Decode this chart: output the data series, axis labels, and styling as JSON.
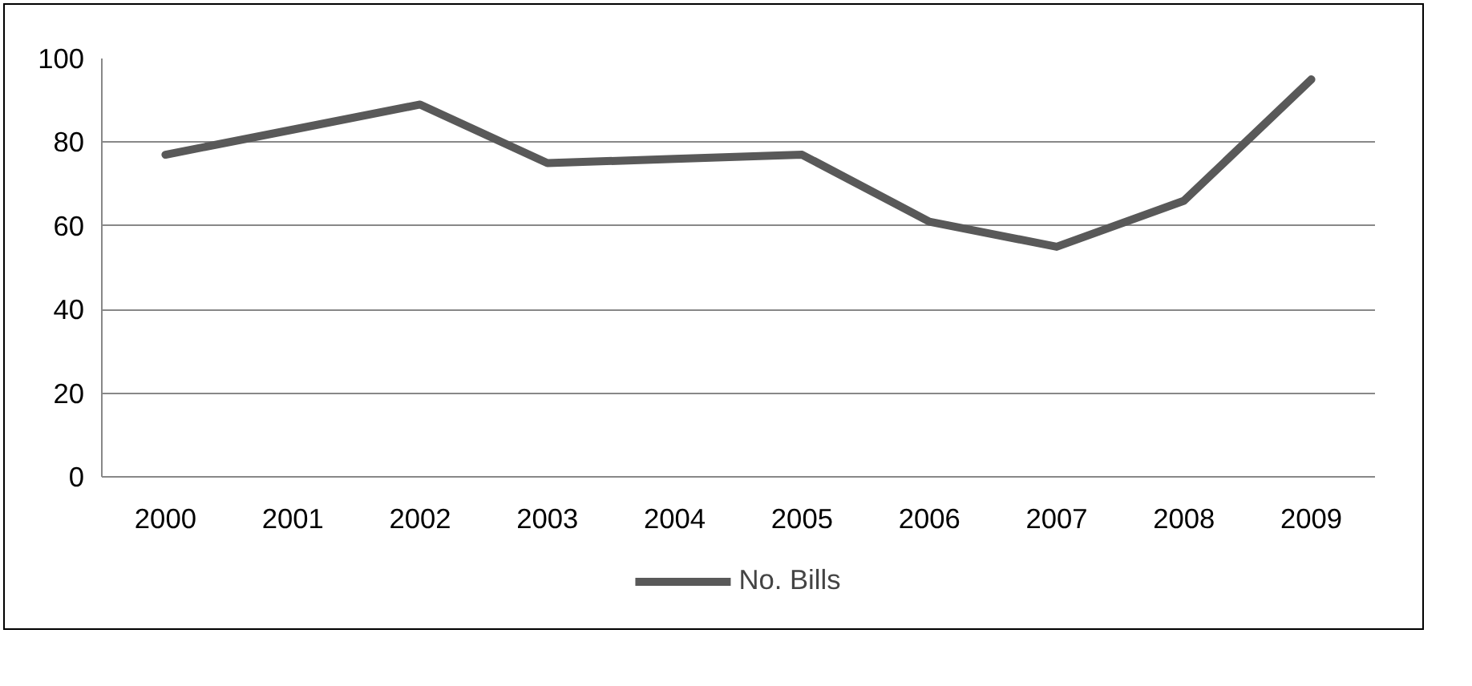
{
  "chart_data": {
    "type": "line",
    "categories": [
      "2000",
      "2001",
      "2002",
      "2003",
      "2004",
      "2005",
      "2006",
      "2007",
      "2008",
      "2009"
    ],
    "series": [
      {
        "name": "No. Bills",
        "color": "#595959",
        "values": [
          77,
          83,
          89,
          75,
          76,
          77,
          61,
          55,
          66,
          95
        ]
      }
    ],
    "ylim": [
      0,
      100
    ],
    "yticks": [
      0,
      20,
      40,
      60,
      80,
      100
    ],
    "grid": "y",
    "legend": "bottom",
    "marker": "none",
    "line_style": "solid"
  }
}
